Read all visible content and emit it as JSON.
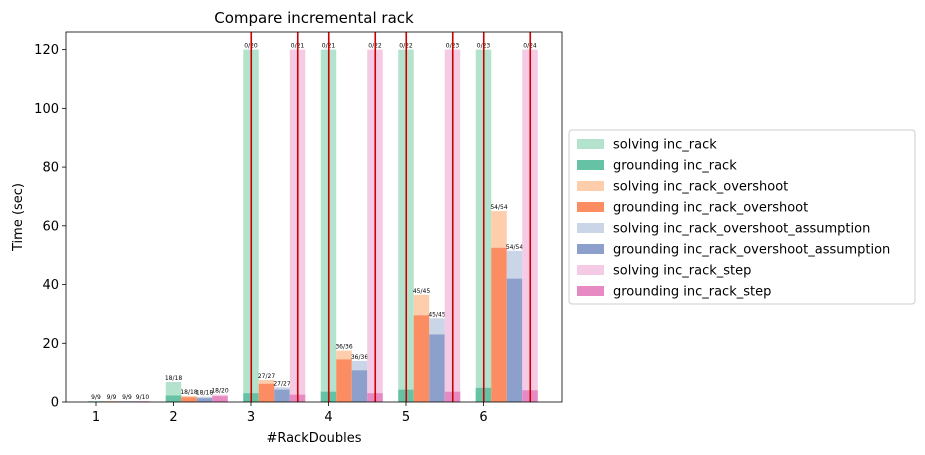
{
  "chart_data": {
    "type": "bar",
    "title": "Compare incremental rack",
    "xlabel": "#RackDoubles",
    "ylabel": "Time (sec)",
    "categories": [
      "1",
      "2",
      "3",
      "4",
      "5",
      "6"
    ],
    "ylim": [
      0,
      126
    ],
    "yticks": [
      0,
      20,
      40,
      60,
      80,
      100,
      120
    ],
    "grid": false,
    "legend_position": "right",
    "series": [
      {
        "name": "inc_rack",
        "solving_label": "solving inc_rack",
        "grounding_label": "grounding inc_rack",
        "total": [
          0.3,
          6.8,
          120,
          120,
          120,
          120
        ],
        "grounding": [
          0.2,
          2.2,
          3.0,
          3.5,
          4.2,
          4.8
        ],
        "labels": [
          "9/9",
          "18/18",
          "0/20",
          "0/21",
          "0/22",
          "0/23"
        ],
        "solving_color": "#b3e2cd",
        "grounding_color": "#66c2a5"
      },
      {
        "name": "inc_rack_overshoot",
        "solving_label": "solving inc_rack_overshoot",
        "grounding_label": "grounding inc_rack_overshoot",
        "total": [
          0.3,
          2.0,
          7.5,
          17.5,
          36.5,
          65.0
        ],
        "grounding": [
          0.2,
          1.6,
          6.2,
          14.5,
          29.5,
          52.5
        ],
        "labels": [
          "9/9",
          "18/18",
          "27/27",
          "36/36",
          "45/45",
          "54/54"
        ],
        "solving_color": "#fdcdac",
        "grounding_color": "#fc8d62"
      },
      {
        "name": "inc_rack_overshoot_assumption",
        "solving_label": "solving inc_rack_overshoot_assumption",
        "grounding_label": "grounding inc_rack_overshoot_assumption",
        "total": [
          0.3,
          1.8,
          5.0,
          14.0,
          28.5,
          51.5
        ],
        "grounding": [
          0.2,
          1.3,
          4.2,
          10.8,
          23.0,
          42.0
        ],
        "labels": [
          "9/9",
          "18/18",
          "27/27",
          "36/36",
          "45/45",
          "54/54"
        ],
        "solving_color": "#cbd5e8",
        "grounding_color": "#8da0cb"
      },
      {
        "name": "inc_rack_step",
        "solving_label": "solving inc_rack_step",
        "grounding_label": "grounding inc_rack_step",
        "total": [
          0.3,
          2.5,
          120,
          120,
          120,
          120
        ],
        "grounding": [
          0.2,
          2.0,
          2.5,
          3.0,
          3.5,
          4.0
        ],
        "labels": [
          "9/10",
          "18/20",
          "0/21",
          "0/22",
          "0/23",
          "0/24"
        ],
        "solving_color": "#f4cae4",
        "grounding_color": "#e78ac3"
      }
    ],
    "timeout_line_color": "#cc0000"
  }
}
